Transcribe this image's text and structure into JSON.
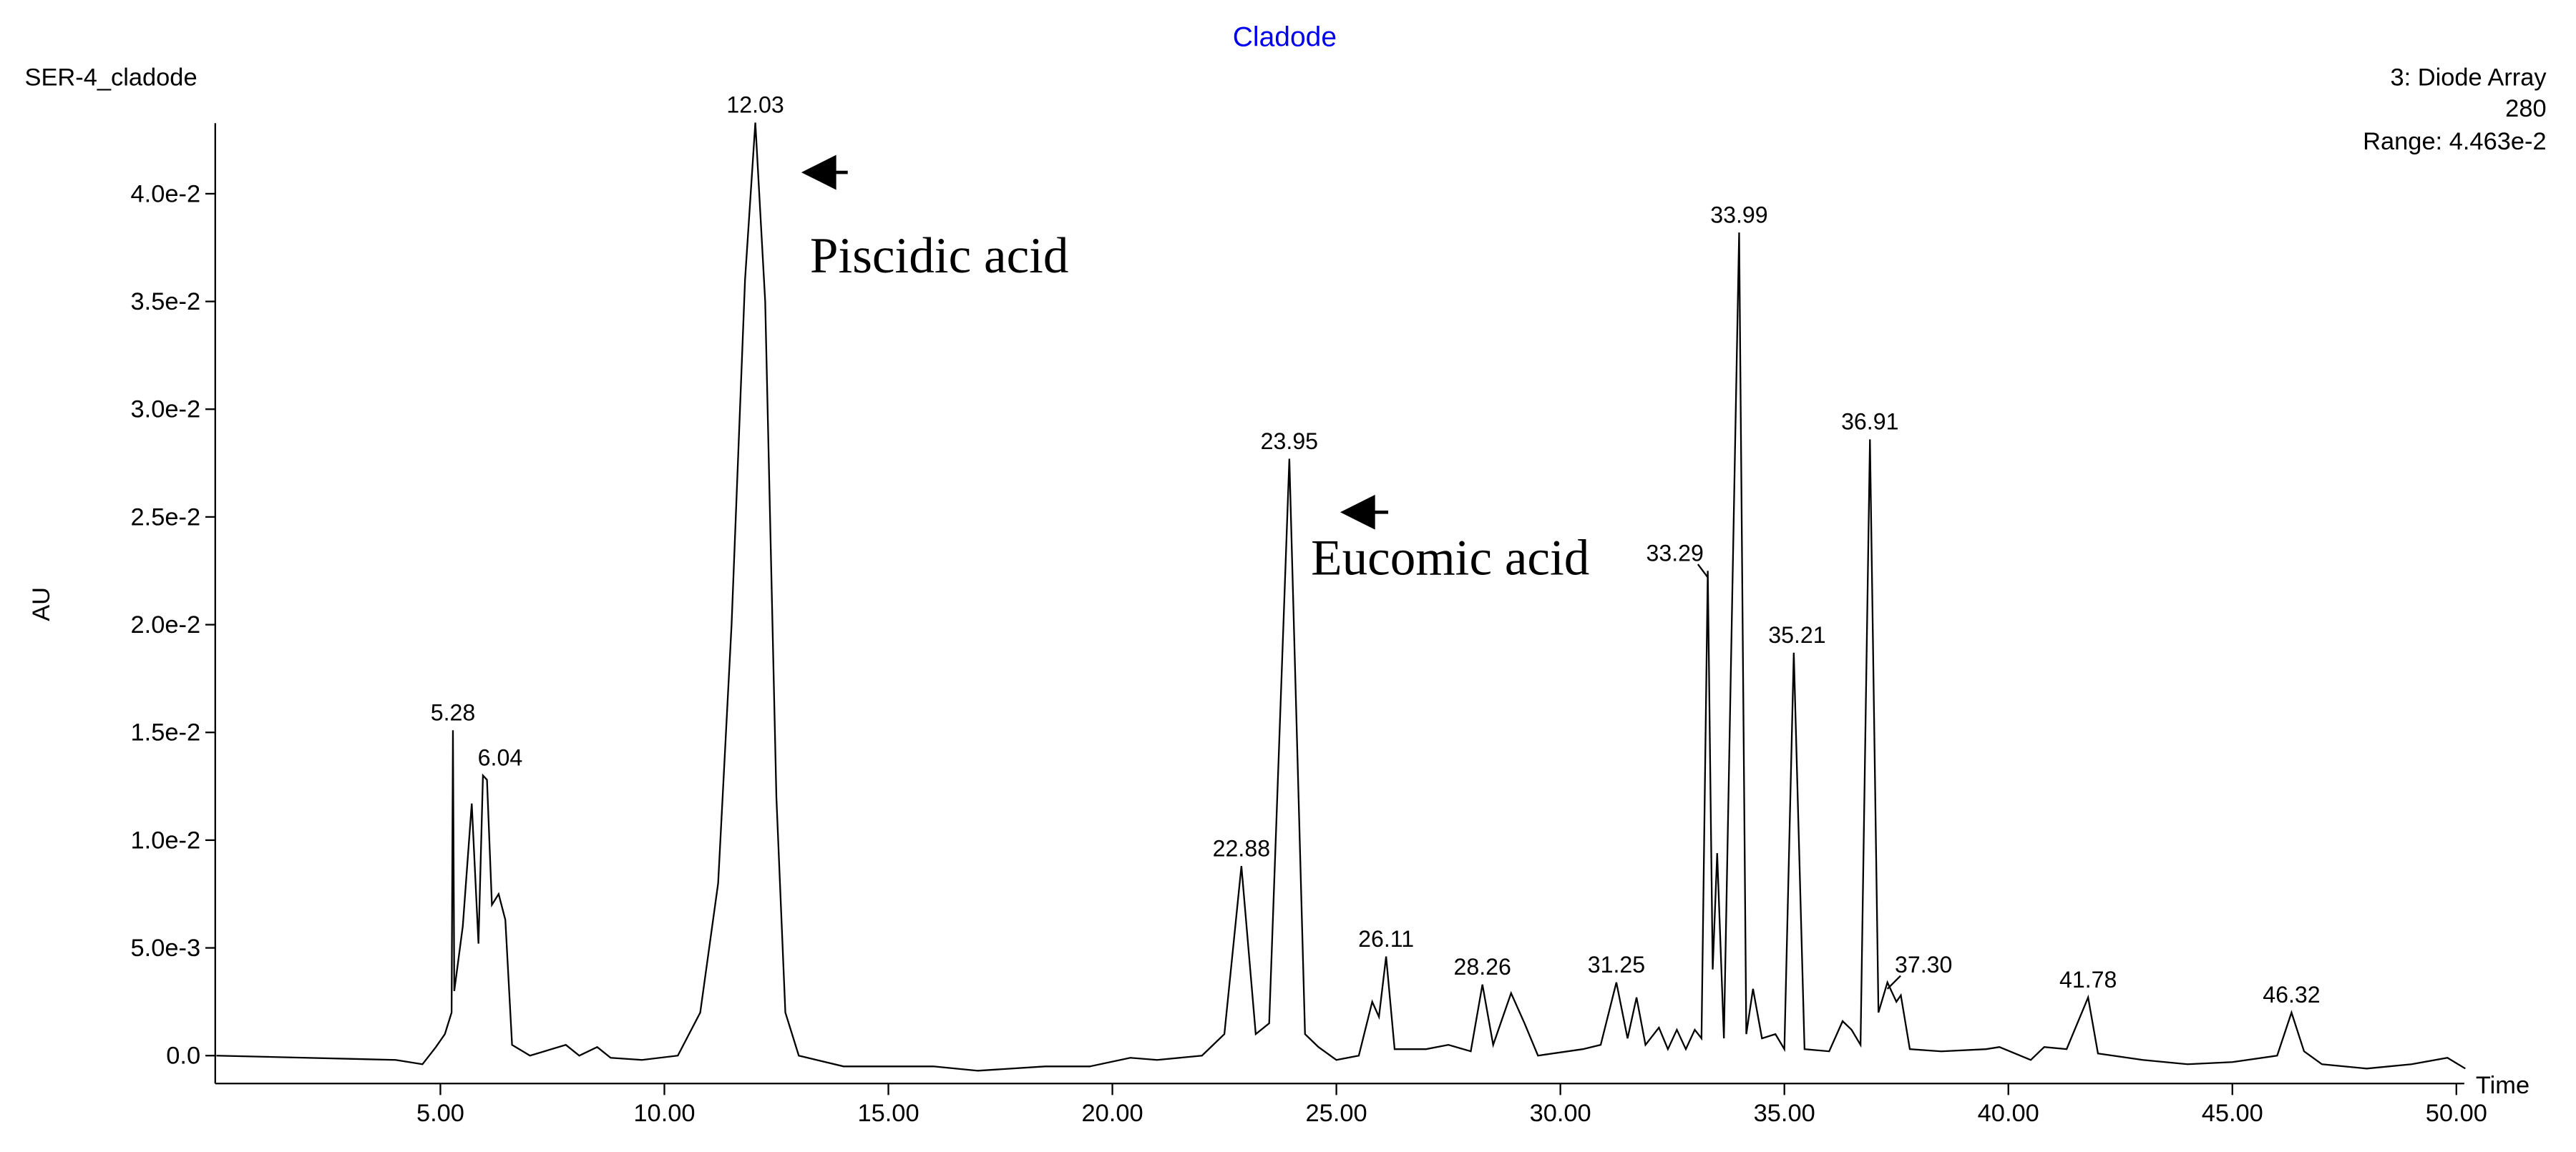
{
  "chart_data": {
    "type": "line",
    "title": "Cladode",
    "title_color": "#0000ee",
    "sample_name": "SER-4_cladode",
    "detector": "3: Diode Array",
    "wavelength": "280",
    "range": "Range: 4.463e-2",
    "y_label": "AU",
    "x_label": "Time",
    "annotations": [
      "Piscidic acid",
      "Eucomic acid"
    ],
    "xlim": [
      0,
      50.2
    ],
    "ylim": [
      -0.0013,
      0.0433
    ],
    "xticks": [
      {
        "value": 5,
        "label": "5.00"
      },
      {
        "value": 10,
        "label": "10.00"
      },
      {
        "value": 15,
        "label": "15.00"
      },
      {
        "value": 20,
        "label": "20.00"
      },
      {
        "value": 25,
        "label": "25.00"
      },
      {
        "value": 30,
        "label": "30.00"
      },
      {
        "value": 35,
        "label": "35.00"
      },
      {
        "value": 40,
        "label": "40.00"
      },
      {
        "value": 45,
        "label": "45.00"
      },
      {
        "value": 50,
        "label": "50.00"
      }
    ],
    "yticks": [
      {
        "value": 0,
        "label": "0.0"
      },
      {
        "value": 0.005,
        "label": "5.0e-3"
      },
      {
        "value": 0.01,
        "label": "1.0e-2"
      },
      {
        "value": 0.015,
        "label": "1.5e-2"
      },
      {
        "value": 0.02,
        "label": "2.0e-2"
      },
      {
        "value": 0.025,
        "label": "2.5e-2"
      },
      {
        "value": 0.03,
        "label": "3.0e-2"
      },
      {
        "value": 0.035,
        "label": "3.5e-2"
      },
      {
        "value": 0.04,
        "label": "4.0e-2"
      }
    ],
    "x": [
      0,
      2,
      4,
      4.6,
      4.9,
      5.1,
      5.25,
      5.28,
      5.31,
      5.5,
      5.7,
      5.85,
      5.95,
      6.04,
      6.15,
      6.3,
      6.45,
      6.6,
      7,
      7.8,
      8.1,
      8.5,
      8.8,
      9.5,
      10.3,
      10.8,
      11.2,
      11.5,
      11.8,
      12.03,
      12.25,
      12.5,
      12.7,
      13,
      14,
      16,
      17,
      18.5,
      19.5,
      20.4,
      21,
      22,
      22.5,
      22.88,
      23.2,
      23.5,
      23.95,
      24.3,
      24.6,
      25,
      25.5,
      25.8,
      25.95,
      26.11,
      26.3,
      27,
      27.5,
      28,
      28.26,
      28.5,
      28.9,
      29.2,
      29.5,
      30.5,
      30.9,
      31.25,
      31.5,
      31.7,
      31.9,
      32.2,
      32.4,
      32.6,
      32.8,
      33,
      33.15,
      33.29,
      33.4,
      33.5,
      33.65,
      33.99,
      34.15,
      34.3,
      34.5,
      34.8,
      35,
      35.21,
      35.45,
      36,
      36.3,
      36.5,
      36.7,
      36.91,
      37.1,
      37.3,
      37.5,
      37.6,
      37.8,
      38.5,
      39.5,
      39.8,
      40.5,
      40.8,
      41.3,
      41.78,
      42,
      43,
      44,
      45,
      46,
      46.32,
      46.6,
      47,
      48,
      49,
      49.8,
      50.2
    ],
    "series": [
      {
        "color": "#000000",
        "values": [
          0,
          -0.0001,
          -0.0002,
          -0.0004,
          0.0004,
          0.001,
          0.002,
          0.0151,
          0.003,
          0.006,
          0.0117,
          0.0052,
          0.013,
          0.0128,
          0.007,
          0.0075,
          0.0063,
          0.0005,
          0,
          0.0005,
          0,
          0.0004,
          -0.0001,
          -0.0002,
          0,
          0.002,
          0.008,
          0.02,
          0.036,
          0.0433,
          0.035,
          0.012,
          0.002,
          0,
          -0.0005,
          -0.0005,
          -0.0007,
          -0.0005,
          -0.0005,
          -0.0001,
          -0.0002,
          0,
          0.001,
          0.0088,
          0.001,
          0.0015,
          0.0277,
          0.001,
          0.0004,
          -0.0002,
          0,
          0.0025,
          0.0018,
          0.0046,
          0.0003,
          0.0003,
          0.0005,
          0.0002,
          0.0033,
          0.0005,
          0.0029,
          0.0015,
          0,
          0.0003,
          0.0005,
          0.0034,
          0.0008,
          0.0027,
          0.0005,
          0.0013,
          0.0003,
          0.0012,
          0.0003,
          0.0012,
          0.0008,
          0.0225,
          0.004,
          0.0094,
          0.0008,
          0.0382,
          0.001,
          0.0031,
          0.0008,
          0.001,
          0.0003,
          0.0187,
          0.0003,
          0.0002,
          0.0016,
          0.0012,
          0.0005,
          0.0286,
          0.002,
          0.0034,
          0.0025,
          0.0028,
          0.0003,
          0.0002,
          0.0003,
          0.0004,
          -0.0002,
          0.0004,
          0.0003,
          0.0027,
          0.0001,
          -0.0002,
          -0.0004,
          -0.0003,
          0,
          0.002,
          0.0002,
          -0.0004,
          -0.0006,
          -0.0004,
          -0.0001,
          -0.0006
        ]
      }
    ],
    "peak_labels": [
      {
        "time": 5.28,
        "height": 0.0151
      },
      {
        "time": 6.04,
        "height": 0.013
      },
      {
        "time": 12.03,
        "height": 0.0433
      },
      {
        "time": 22.88,
        "height": 0.0088
      },
      {
        "time": 23.95,
        "height": 0.0277
      },
      {
        "time": 26.11,
        "height": 0.0046
      },
      {
        "time": 28.26,
        "height": 0.0033
      },
      {
        "time": 31.25,
        "height": 0.0034
      },
      {
        "time": 33.29,
        "height": 0.0225
      },
      {
        "time": 33.99,
        "height": 0.0382
      },
      {
        "time": 35.21,
        "height": 0.0187
      },
      {
        "time": 36.91,
        "height": 0.0286
      },
      {
        "time": {
          "value": 37.3,
          "label": "37.30"
        },
        "height": 0.0034
      },
      {
        "time": 41.78,
        "height": 0.0027
      },
      {
        "time": 46.32,
        "height": 0.002
      }
    ]
  }
}
